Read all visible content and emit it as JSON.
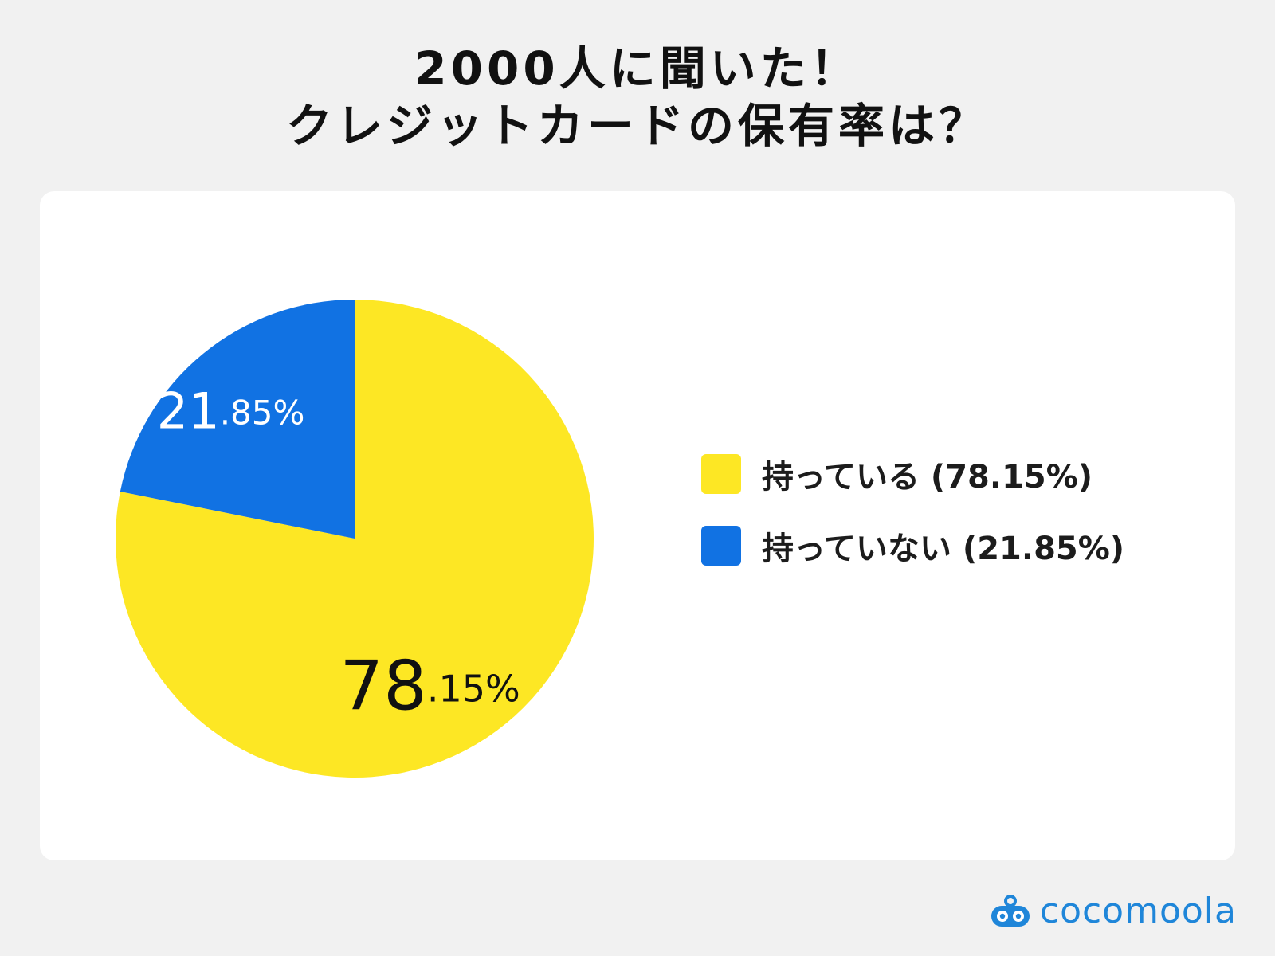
{
  "title": {
    "line1": "2000人に聞いた！",
    "line2": "クレジットカードの保有率は？"
  },
  "chart_data": {
    "type": "pie",
    "series": [
      {
        "name": "持っている",
        "value": 78.15,
        "color": "#fde724",
        "label_int": "78",
        "label_frac": ".15%",
        "label_color": "#111111"
      },
      {
        "name": "持っていない",
        "value": 21.85,
        "color": "#1172e3",
        "label_int": "21",
        "label_frac": ".85%",
        "label_color": "#ffffff"
      }
    ],
    "legend": [
      {
        "label": "持っている (78.15%)",
        "color": "#fde724"
      },
      {
        "label": "持っていない (21.85%)",
        "color": "#1172e3"
      }
    ],
    "legend_position": "right"
  },
  "brand": {
    "name": "cocomoola",
    "color": "#1f86d9",
    "icon": "cocomoola-logo-icon"
  }
}
